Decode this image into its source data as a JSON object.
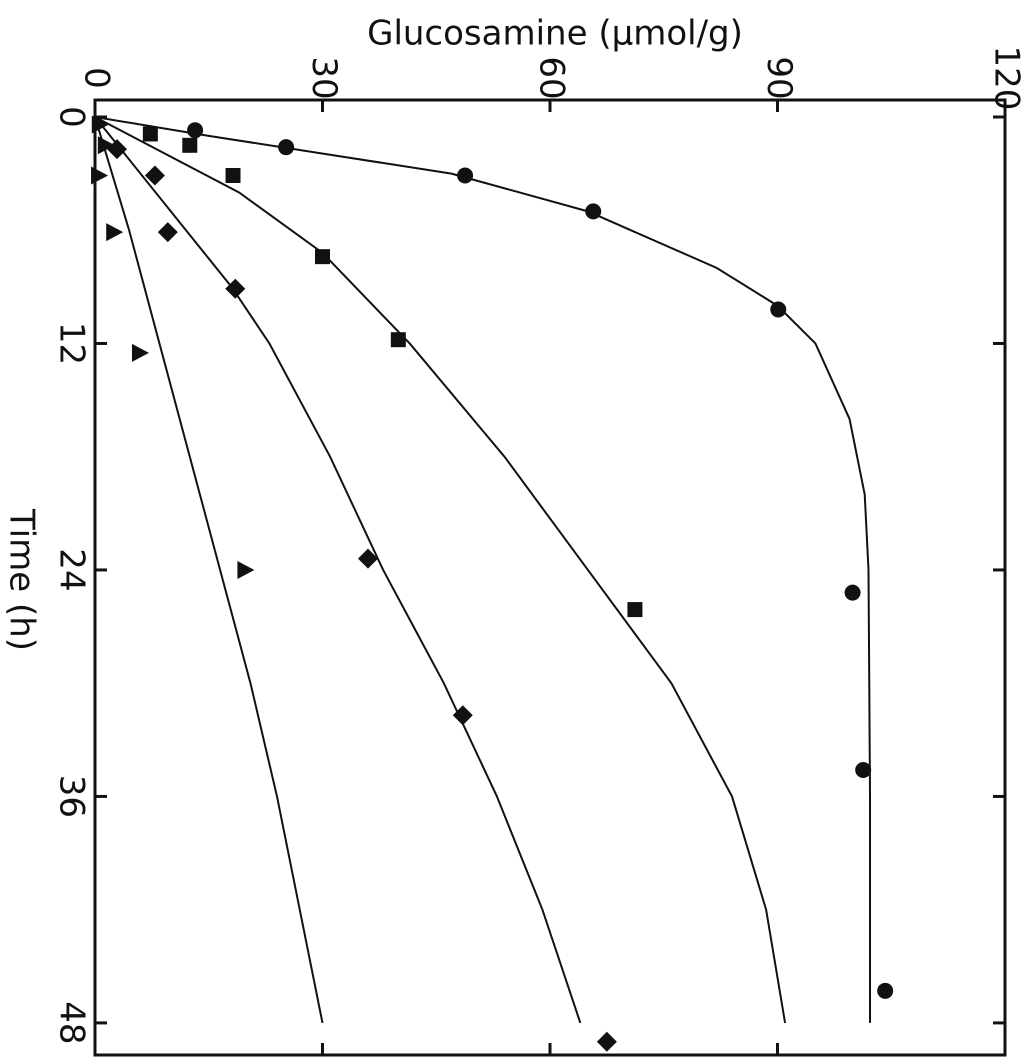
{
  "chart_data": {
    "type": "scatter",
    "xlabel": "Time (h)",
    "ylabel": "Glucosamine (µmol/g)",
    "xlim": [
      -0.9,
      49.7
    ],
    "xticks": [
      0,
      12,
      24,
      36,
      48
    ],
    "ylim": [
      0,
      120
    ],
    "yticks": [
      0,
      30,
      60,
      90,
      120
    ],
    "series": [
      {
        "marker": "circle",
        "color": "#111",
        "x": [
          0.7,
          1.6,
          3.1,
          5,
          10.2,
          25.2,
          34.6,
          46.3
        ],
        "values": [
          13.2,
          25.2,
          48.8,
          65.7,
          90.1,
          99.9,
          101.3,
          104.2
        ]
      },
      {
        "marker": "square",
        "color": "#111",
        "x": [
          0.9,
          1.5,
          3.1,
          7.4,
          11.8,
          26.1
        ],
        "values": [
          7.3,
          12.5,
          18.2,
          30,
          40,
          71.2
        ]
      },
      {
        "marker": "diamond",
        "color": "#111",
        "x": [
          1.7,
          3.1,
          6.1,
          9.1,
          23.4,
          31.7,
          49
        ],
        "values": [
          2.9,
          7.9,
          9.6,
          18.5,
          36,
          48.5,
          67.5
        ]
      },
      {
        "marker": "triangle",
        "color": "#111",
        "x": [
          0.4,
          1.5,
          3.1,
          6.1,
          12.5,
          24
        ],
        "values": [
          0.5,
          1.3,
          0.4,
          2.4,
          5.8,
          19.7
        ]
      }
    ],
    "fits": [
      {
        "color": "#111",
        "x": [
          0,
          1,
          2,
          3,
          5,
          8,
          10,
          12,
          16,
          20,
          24,
          36,
          48
        ],
        "values": [
          0,
          15,
          31,
          47,
          65,
          82,
          90,
          95,
          99.5,
          101.5,
          102,
          102.2,
          102.2
        ]
      },
      {
        "color": "#111",
        "x": [
          0,
          4,
          7.2,
          12,
          18,
          24,
          30,
          36,
          42,
          48
        ],
        "values": [
          0,
          19,
          30,
          41.5,
          54,
          65,
          76,
          84,
          88.5,
          91
        ]
      },
      {
        "color": "#111",
        "x": [
          0,
          6,
          9,
          12,
          18,
          24,
          30,
          36,
          42,
          48
        ],
        "values": [
          0,
          12,
          18,
          23,
          31,
          38,
          46,
          53,
          59,
          64
        ]
      },
      {
        "color": "#111",
        "x": [
          0,
          6,
          12,
          18,
          24,
          30,
          36,
          42,
          48
        ],
        "values": [
          0,
          4.5,
          8.5,
          12.5,
          16.5,
          20.5,
          24,
          27,
          30
        ]
      }
    ]
  }
}
